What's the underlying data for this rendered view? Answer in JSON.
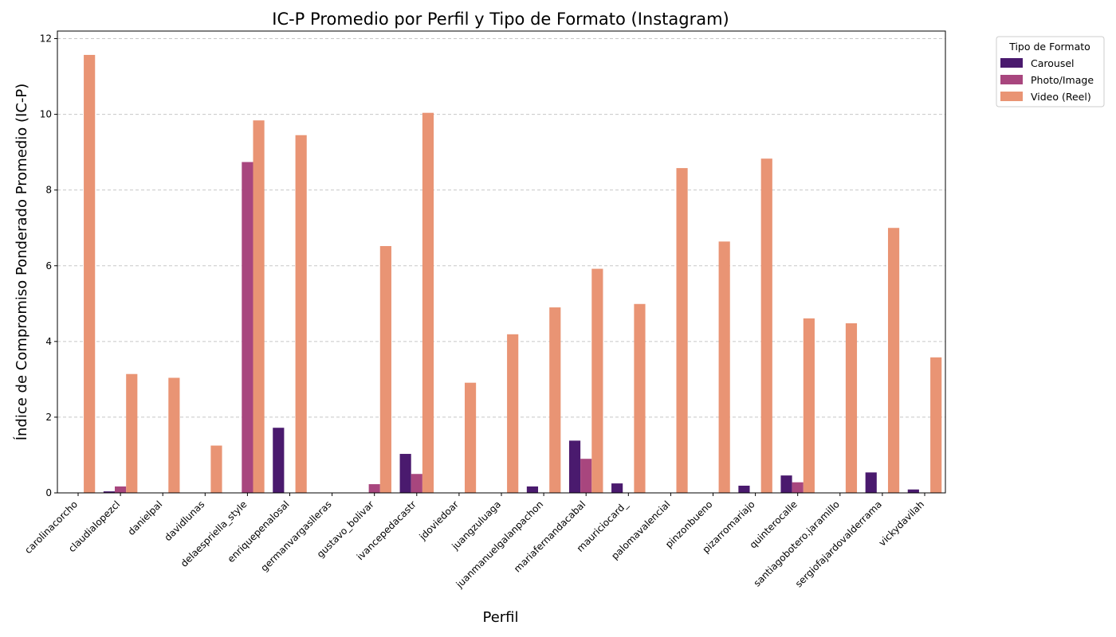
{
  "chart_data": {
    "type": "bar",
    "title": "IC-P Promedio por Perfil y Tipo de Formato (Instagram)",
    "xlabel": "Perfil",
    "ylabel": "Índice de Compromiso Ponderado Promedio (IC-P)",
    "ylim": [
      0,
      12.2
    ],
    "yticks": [
      0,
      2,
      4,
      6,
      8,
      10,
      12
    ],
    "grid": "y-dashed",
    "legend": {
      "title": "Tipo de Formato",
      "placement": "outside-top-right"
    },
    "categories": [
      "carolinacorcho",
      "claudialopezcl",
      "danielpal",
      "davidlunas",
      "delaespriella_style",
      "enriquepenalosal",
      "germanvargaslleras",
      "gustavo_bolivar",
      "ivancepedacastr",
      "jdoviedoar",
      "juangzuluaga",
      "juanmanuelgalanpachon",
      "mariafernandacabal",
      "mauriciocard_",
      "palomavalencial",
      "pinzonbueno",
      "pizarromariajo",
      "quinterocalle",
      "santiagobotero.jaramillo",
      "sergiofajardovalderrama",
      "vickydavilah"
    ],
    "series": [
      {
        "name": "Carousel",
        "color": "#4a1a6e",
        "values": [
          0,
          0.04,
          0,
          0,
          0,
          1.72,
          0,
          0,
          1.03,
          0,
          0,
          0.17,
          1.38,
          0.25,
          0,
          0,
          0.19,
          0.46,
          0,
          0.54,
          0.09
        ]
      },
      {
        "name": "Photo/Image",
        "color": "#a8467e",
        "values": [
          0,
          0.17,
          0,
          0,
          8.74,
          0,
          0,
          0.23,
          0.5,
          0,
          0,
          0,
          0.9,
          0,
          0,
          0,
          0,
          0.28,
          0,
          0,
          0
        ]
      },
      {
        "name": "Video (Reel)",
        "color": "#e99474",
        "values": [
          11.57,
          3.14,
          3.04,
          1.25,
          9.84,
          9.45,
          0,
          6.52,
          10.04,
          2.91,
          4.19,
          4.9,
          5.92,
          4.99,
          8.58,
          6.64,
          8.83,
          4.61,
          4.48,
          7.0,
          3.58
        ]
      }
    ]
  }
}
